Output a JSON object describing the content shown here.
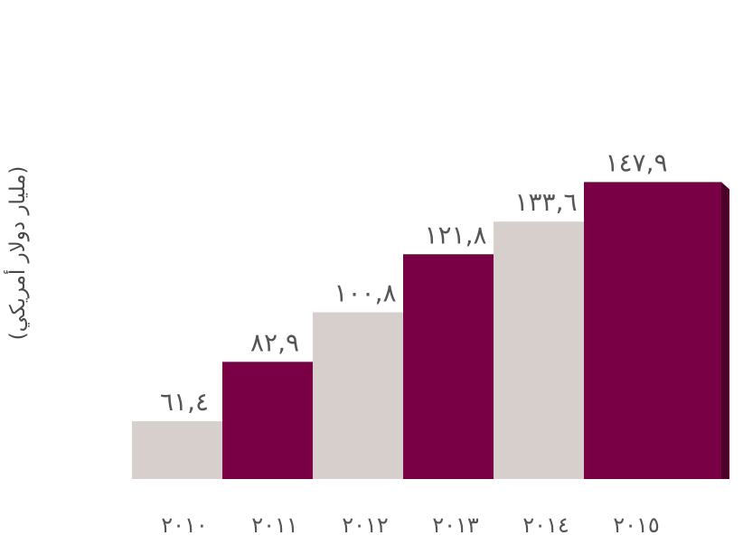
{
  "chart_data": {
    "type": "bar",
    "categories": [
      "٢٠١٠",
      "٢٠١١",
      "٢٠١٢",
      "٢٠١٣",
      "٢٠١٤",
      "٢٠١٥"
    ],
    "values": [
      61.4,
      82.9,
      100.8,
      121.8,
      133.6,
      147.9
    ],
    "value_labels": [
      "٦١,٤",
      "٨٢,٩",
      "١٠٠,٨",
      "١٢١,٨",
      "١٣٣,٦",
      "١٤٧,٩"
    ],
    "ylabel": "(مليار دولار أمريكي)",
    "title": "",
    "xlabel": "",
    "grid": false,
    "legend": "none",
    "colors": {
      "light_face": "#d6cfcb",
      "light_side": "#a59e9b",
      "dark_face": "#7a0045",
      "dark_side": "#4b0029",
      "label": "#555555"
    }
  }
}
